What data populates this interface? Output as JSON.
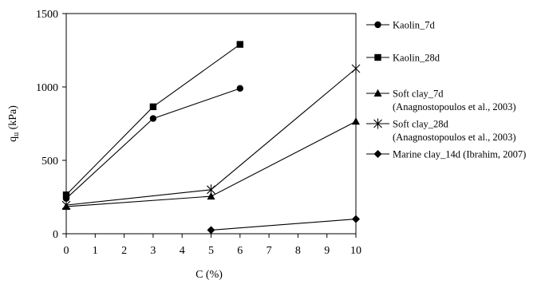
{
  "chart_data": {
    "type": "line",
    "title": "",
    "xlabel": "C (%)",
    "ylabel_main": "q",
    "ylabel_sub": "u",
    "ylabel_units": " (kPa)",
    "xlim": [
      0,
      10
    ],
    "ylim": [
      0,
      1500
    ],
    "x_ticks": [
      0,
      1,
      2,
      3,
      4,
      5,
      6,
      7,
      8,
      9,
      10
    ],
    "y_ticks": [
      0,
      500,
      1000,
      1500
    ],
    "grid": false,
    "legend_position": "right",
    "series": [
      {
        "name": "Kaolin_7d",
        "note": "",
        "marker": "circle",
        "x": [
          0,
          3,
          6
        ],
        "y": [
          240,
          785,
          990
        ]
      },
      {
        "name": "Kaolin_28d",
        "note": "",
        "marker": "square",
        "x": [
          0,
          3,
          6
        ],
        "y": [
          265,
          865,
          1290
        ]
      },
      {
        "name": "Soft clay_7d",
        "note": "(Anagnostopoulos et al., 2003)",
        "marker": "triangle",
        "x": [
          0,
          5,
          10
        ],
        "y": [
          185,
          255,
          765
        ]
      },
      {
        "name": "Soft clay_28d",
        "note": "(Anagnostopoulos et al., 2003)",
        "marker": "star",
        "x": [
          0,
          5,
          10
        ],
        "y": [
          195,
          300,
          1125
        ]
      },
      {
        "name": "Marine clay_14d (Ibrahim, 2007)",
        "note": "",
        "marker": "diamond",
        "x": [
          5,
          10
        ],
        "y": [
          25,
          100
        ]
      }
    ]
  }
}
